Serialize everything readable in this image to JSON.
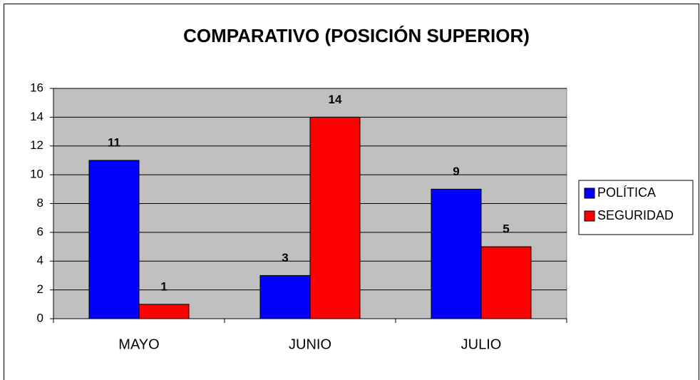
{
  "chart_data": {
    "type": "bar",
    "title": "COMPARATIVO (POSICIÓN SUPERIOR)",
    "categories": [
      "MAYO",
      "JUNIO",
      "JULIO"
    ],
    "series": [
      {
        "name": "POLÍTICA",
        "color": "#0000ff",
        "values": [
          11,
          3,
          9
        ]
      },
      {
        "name": "SEGURIDAD",
        "color": "#ff0000",
        "values": [
          1,
          14,
          5
        ]
      }
    ],
    "ylim": [
      0,
      16
    ],
    "yticks": [
      0,
      2,
      4,
      6,
      8,
      10,
      12,
      14,
      16
    ],
    "grid": true,
    "legend": "right"
  }
}
